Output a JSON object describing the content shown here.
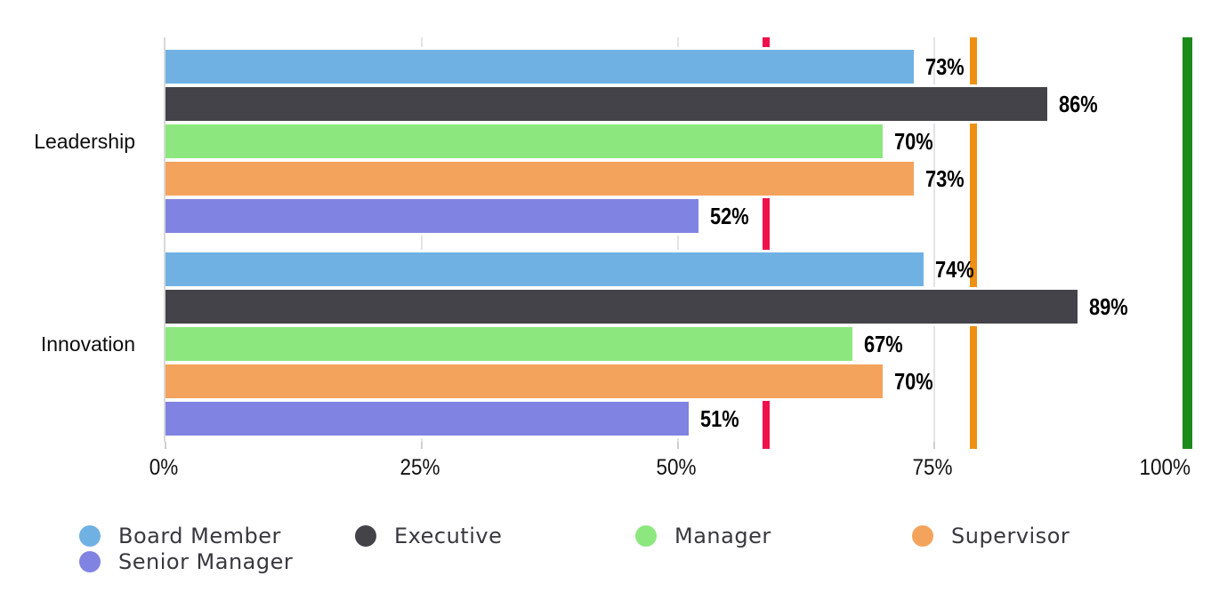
{
  "chart_data": {
    "type": "bar",
    "orientation": "horizontal",
    "title": "",
    "categories": [
      "Leadership",
      "Innovation"
    ],
    "series": [
      {
        "name": "Board Member",
        "color": "#70B1E4",
        "values": [
          73,
          74
        ]
      },
      {
        "name": "Executive",
        "color": "#434349",
        "values": [
          86,
          89
        ]
      },
      {
        "name": "Manager",
        "color": "#8CE87E",
        "values": [
          70,
          67
        ]
      },
      {
        "name": "Supervisor",
        "color": "#F4A35C",
        "values": [
          73,
          70
        ]
      },
      {
        "name": "Senior Manager",
        "color": "#8083E2",
        "values": [
          52,
          51
        ]
      }
    ],
    "value_label_format": "{value}%",
    "x_axis": {
      "tick_labels": [
        "0%",
        "25%",
        "50%",
        "75%",
        "100%"
      ],
      "tick_values": [
        0,
        25,
        50,
        75,
        100
      ],
      "min": 0,
      "max": 100
    },
    "reference_lines": [
      {
        "name": "red-reference-line",
        "color": "#F0114B",
        "value_pct": 58.6,
        "width": 8
      },
      {
        "name": "orange-reference-line",
        "color": "#EE9014",
        "value_pct": 78.8,
        "width": 8
      },
      {
        "name": "green-reference-line",
        "color": "#1B8A1B",
        "value_pct": 99.7,
        "width": 11
      }
    ],
    "legend": {
      "items": [
        "Board Member",
        "Executive",
        "Manager",
        "Supervisor",
        "Senior Manager"
      ]
    },
    "grid": true,
    "ylim": [
      0,
      100
    ]
  }
}
